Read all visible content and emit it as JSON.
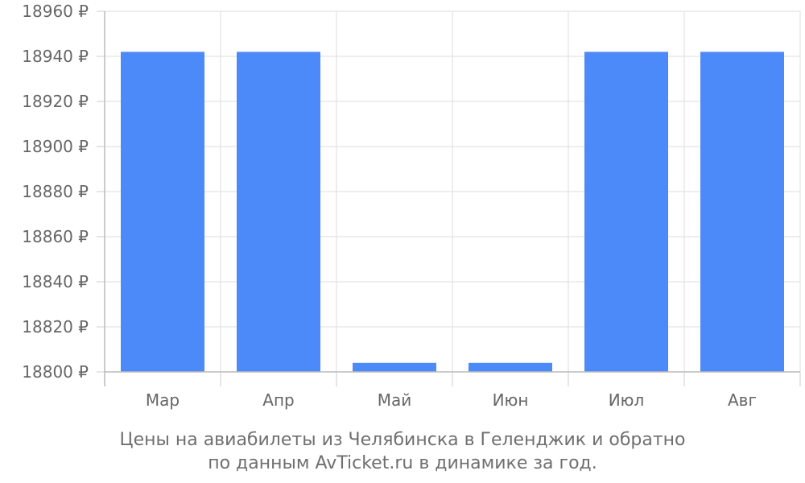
{
  "chart_data": {
    "type": "bar",
    "categories": [
      "Мар",
      "Апр",
      "Май",
      "Июн",
      "Июл",
      "Авг"
    ],
    "values": [
      18942,
      18942,
      18804,
      18804,
      18942,
      18942
    ],
    "ylim": [
      18800,
      18960
    ],
    "yticks": [
      18800,
      18820,
      18840,
      18860,
      18880,
      18900,
      18920,
      18940,
      18960
    ],
    "currency_suffix": "₽",
    "grid": true,
    "bar_color": "#4d8af9",
    "caption_lines": [
      "Цены на авиабилеты из Челябинска в Геленджик и обратно",
      "по данным AvTicket.ru в динамике за год."
    ]
  }
}
